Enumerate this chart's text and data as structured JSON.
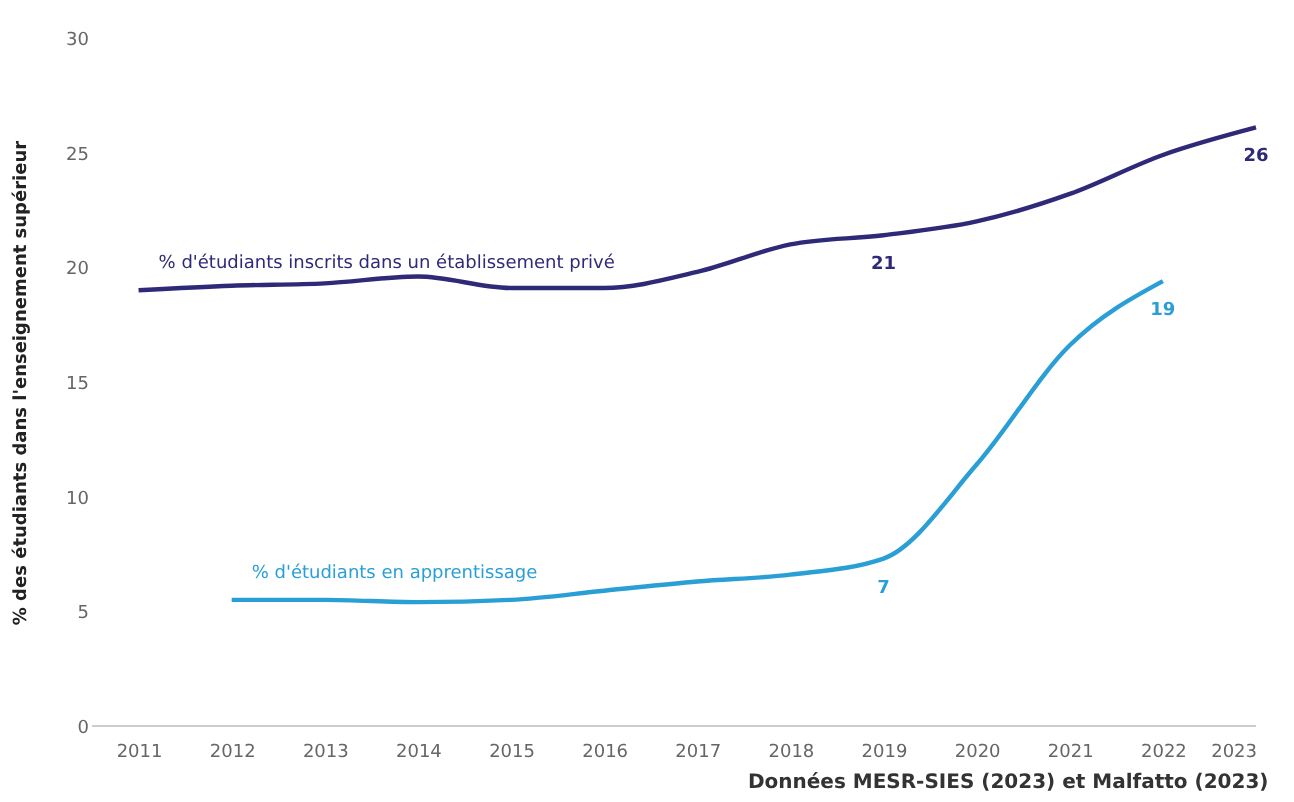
{
  "chart_data": {
    "type": "line",
    "ylabel": "% des étudiants dans l'enseignement supérieur",
    "x": [
      2011,
      2012,
      2013,
      2014,
      2015,
      2016,
      2017,
      2018,
      2019,
      2020,
      2021,
      2022,
      2023
    ],
    "series": [
      {
        "name": "% d'étudiants inscrits dans un établissement privé",
        "color": "#2e2a78",
        "values": [
          19.0,
          19.2,
          19.3,
          19.6,
          19.1,
          19.1,
          19.8,
          21.0,
          21.4,
          22.0,
          23.2,
          24.9,
          26.1
        ],
        "value_labels": [
          null,
          null,
          null,
          null,
          null,
          null,
          null,
          null,
          "21",
          null,
          null,
          null,
          "26"
        ]
      },
      {
        "name": "% d'étudiants en apprentissage",
        "color": "#2a9fd6",
        "values": [
          null,
          5.5,
          5.5,
          5.4,
          5.5,
          5.9,
          6.3,
          6.6,
          7.3,
          11.4,
          16.6,
          19.4,
          null
        ],
        "value_labels": [
          null,
          null,
          null,
          null,
          null,
          null,
          null,
          null,
          "7",
          null,
          null,
          "19",
          null
        ]
      }
    ],
    "xlim": [
      2010.5,
      2023
    ],
    "xticks": [
      2011,
      2012,
      2013,
      2014,
      2015,
      2016,
      2017,
      2018,
      2019,
      2020,
      2021,
      2022,
      2023
    ],
    "ylim": [
      0,
      30
    ],
    "yticks": [
      0,
      5,
      10,
      15,
      20,
      25,
      30
    ],
    "grid": false,
    "marker": "none",
    "line_style": "solid",
    "annotations": [
      "Données MESR-SIES (2023) et Malfatto (2023)"
    ]
  }
}
